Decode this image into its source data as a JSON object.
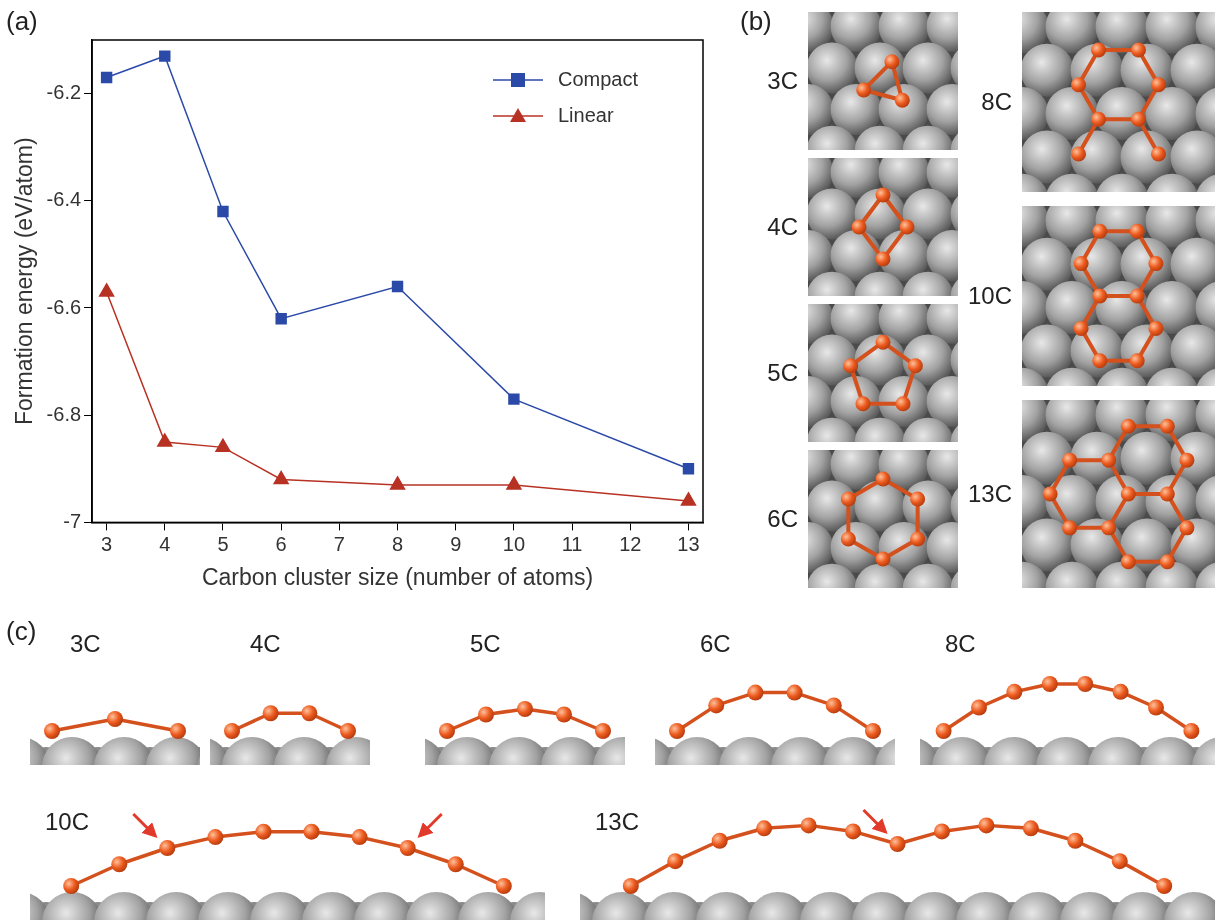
{
  "chart_data": {
    "type": "line",
    "panel_label": "(a)",
    "x_label": "Carbon cluster size (number of atoms)",
    "y_label": "Formation energy (eV/atom)",
    "x": [
      3,
      4,
      5,
      6,
      8,
      10,
      13
    ],
    "series": [
      {
        "name": "Compact",
        "color": "#2b4aa8",
        "marker": "square",
        "values": [
          -6.17,
          -6.13,
          -6.42,
          -6.62,
          -6.56,
          -6.77,
          -6.9
        ]
      },
      {
        "name": "Linear",
        "color": "#b83224",
        "marker": "triangle",
        "values": [
          -6.57,
          -6.85,
          -6.86,
          -6.92,
          -6.93,
          -6.93,
          -6.96
        ]
      }
    ],
    "xlim": [
      2.75,
      13.25
    ],
    "ylim": [
      -7,
      -6.1
    ],
    "xticks": [
      3,
      4,
      5,
      6,
      7,
      8,
      9,
      10,
      11,
      12,
      13
    ],
    "yticks": [
      -7,
      -6.8,
      -6.6,
      -6.4,
      -6.2
    ],
    "grid": false,
    "legend": "upper right"
  },
  "panel_b": {
    "label": "(b)",
    "structures": [
      "3C",
      "4C",
      "5C",
      "6C",
      "8C",
      "10C",
      "13C"
    ]
  },
  "panel_c": {
    "label": "(c)",
    "structures": [
      "3C",
      "4C",
      "5C",
      "6C",
      "8C",
      "10C",
      "13C"
    ]
  }
}
